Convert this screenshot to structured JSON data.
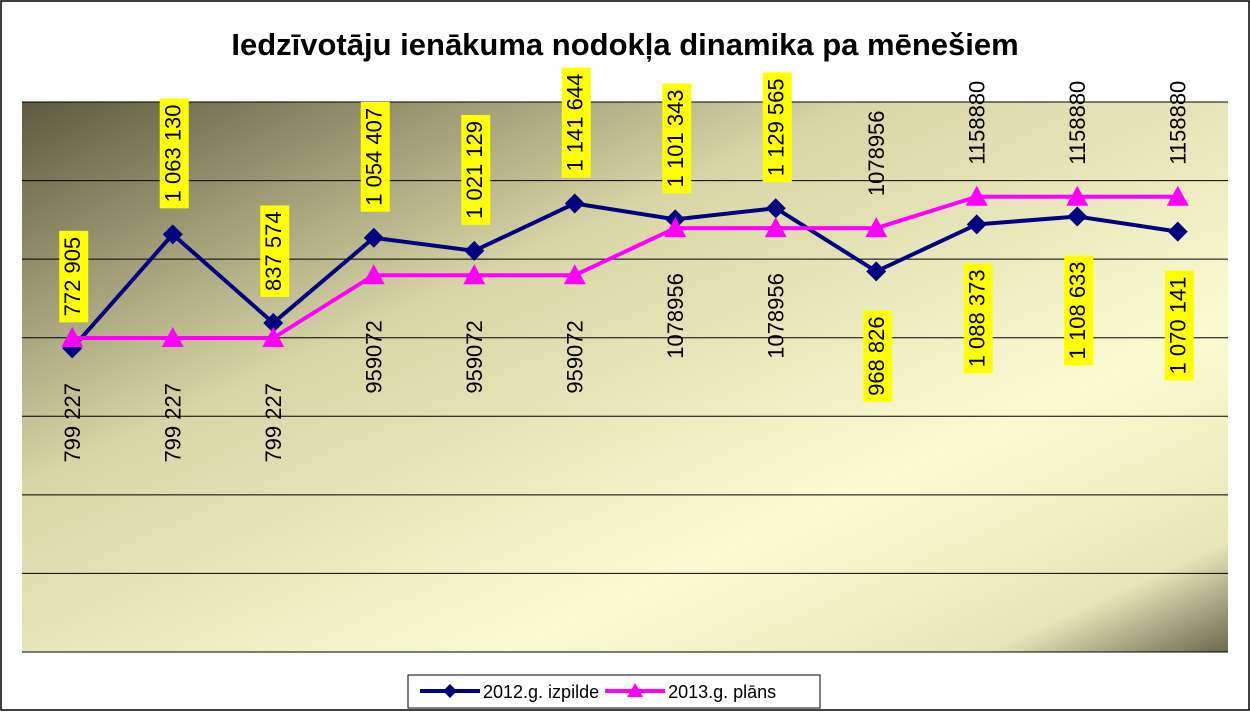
{
  "chart_data": {
    "type": "line",
    "title": "Iedzīvotāju ienākuma nodokļa dinamika pa mēnešiem",
    "categories": [
      null,
      null,
      null,
      null,
      null,
      null,
      null,
      null,
      null,
      null,
      null,
      null
    ],
    "series": [
      {
        "name": "2012.g. izpilde",
        "color": "#000080",
        "marker": "diamond",
        "values": [
          772905,
          1063130,
          837574,
          1054407,
          1021129,
          1141644,
          1101343,
          1129565,
          968826,
          1088373,
          1108633,
          1070141
        ],
        "value_labels": [
          "772 905",
          "1 063 130",
          "837 574",
          "1 054 407",
          "1 021 129",
          "1 141 644",
          "1 101 343",
          "1 129 565",
          "968 826",
          "1 088 373",
          "1 108 633",
          "1 070 141"
        ]
      },
      {
        "name": "2013.g. plāns",
        "color": "#ff00ff",
        "marker": "triangle",
        "values": [
          799227,
          799227,
          799227,
          959072,
          959072,
          959072,
          1078956,
          1078956,
          1078956,
          1158880,
          1158880,
          1158880
        ],
        "value_labels": [
          "799 227",
          "799 227",
          "799 227",
          "959072",
          "959072",
          "959072",
          "1078956",
          "1078956",
          "1078956",
          "1158880",
          "1158880",
          "1158880"
        ]
      }
    ],
    "ylim": [
      0,
      1400000
    ],
    "yticks": [
      0,
      200000,
      400000,
      600000,
      800000,
      1000000,
      1200000,
      1400000
    ],
    "grid": true,
    "legend": "bottom"
  }
}
